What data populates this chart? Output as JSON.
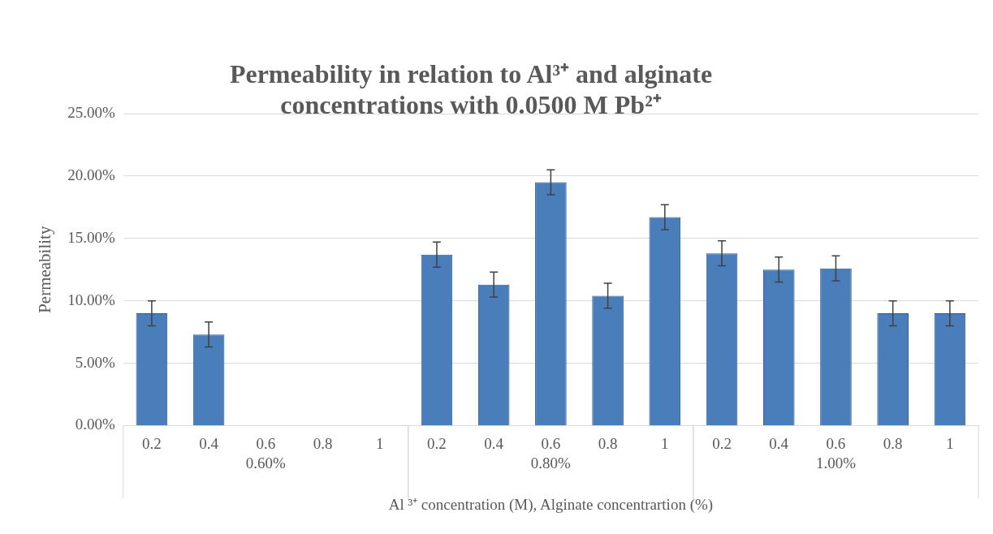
{
  "chart_data": {
    "type": "bar",
    "title": "Permeability in relation to Al³⁺ and alginate concentrations with 0.0500 M Pb²⁺",
    "xlabel": "Al ³⁺ concentration (M), Alginate concentrartion (%)",
    "ylabel": "Permeability",
    "categories": [
      "0.2",
      "0.4",
      "0.6",
      "0.8",
      "1",
      "0.2",
      "0.4",
      "0.6",
      "0.8",
      "1",
      "0.2",
      "0.4",
      "0.6",
      "0.8",
      "1"
    ],
    "annotations": [
      "0.60%",
      "0.80%",
      "1.00%"
    ],
    "values": [
      9.0,
      7.3,
      null,
      null,
      null,
      13.7,
      11.3,
      19.5,
      10.4,
      16.7,
      13.8,
      12.5,
      12.6,
      9.0,
      9.0
    ],
    "errors": [
      1.0,
      1.0,
      null,
      null,
      null,
      1.0,
      1.0,
      1.0,
      1.0,
      1.0,
      1.0,
      1.0,
      1.0,
      1.0,
      1.0
    ],
    "color": "#4a7ebb",
    "ylim": [
      0,
      25
    ],
    "yticks": [
      {
        "value": 0,
        "label": "0.00%"
      },
      {
        "value": 5,
        "label": "5.00%"
      },
      {
        "value": 10,
        "label": "10.00%"
      },
      {
        "value": 15,
        "label": "15.00%"
      },
      {
        "value": 20,
        "label": "20.00%"
      },
      {
        "value": 25,
        "label": "25.00%"
      }
    ],
    "grid": "y"
  }
}
